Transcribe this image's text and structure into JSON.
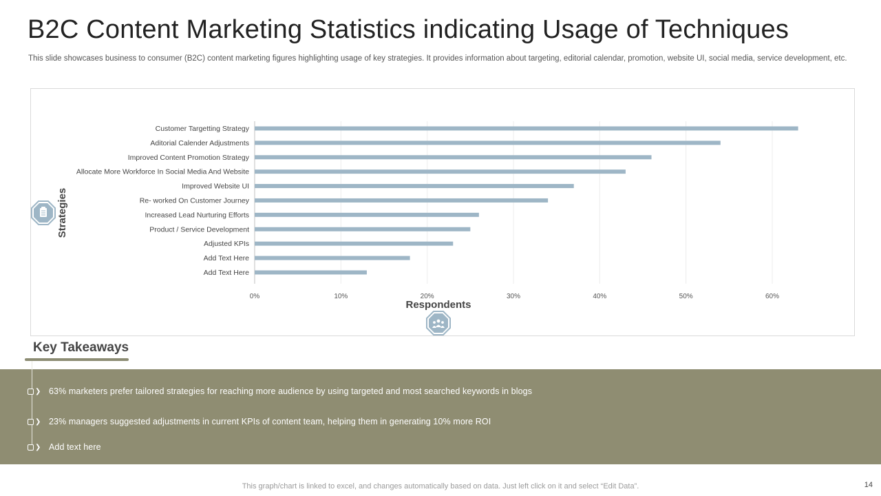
{
  "slide": {
    "title": "B2C Content Marketing Statistics indicating Usage of Techniques",
    "subtitle": "This slide showcases business to consumer (B2C) content marketing figures highlighting usage of key strategies. It provides information about targeting, editorial calendar, promotion, website UI, social media, service development, etc.",
    "page_number": "14",
    "footer": "This graph/chart is linked to excel, and changes automatically based on data. Just left click on it and select “Edit Data”."
  },
  "icons": {
    "y_axis_icon": "clipboard-icon",
    "x_axis_icon": "people-group-icon",
    "bullet_icon": "chevron-right-icon",
    "accent": "#9eb6c6",
    "panel": "#8f8d72"
  },
  "chart_data": {
    "type": "bar",
    "orientation": "horizontal",
    "categories": [
      "Customer Targetting Strategy",
      "Aditorial Calender Adjustments",
      "Improved Content Promotion Strategy",
      "Allocate More Workforce In Social Media And Website",
      "Improved Website UI",
      "Re- worked On Customer Journey",
      "Increased Lead Nurturing Efforts",
      "Product / Service Development",
      "Adjusted KPIs",
      "Add Text Here",
      "Add Text Here"
    ],
    "values": [
      63,
      54,
      46,
      43,
      37,
      34,
      26,
      25,
      23,
      18,
      13
    ],
    "xlabel": "Respondents",
    "ylabel": "Strategies",
    "xlim": [
      0,
      60
    ],
    "x_ticks": [
      "0%",
      "10%",
      "20%",
      "30%",
      "40%",
      "50%",
      "60%"
    ],
    "grid": true,
    "bar_color": "#9eb6c6"
  },
  "takeaways": {
    "title": "Key Takeaways",
    "items": [
      "63% marketers prefer tailored strategies for reaching more audience by using targeted and most searched keywords in blogs",
      "23% managers suggested adjustments in current KPIs of content team, helping them in generating 10% more ROI",
      "Add text here"
    ]
  }
}
